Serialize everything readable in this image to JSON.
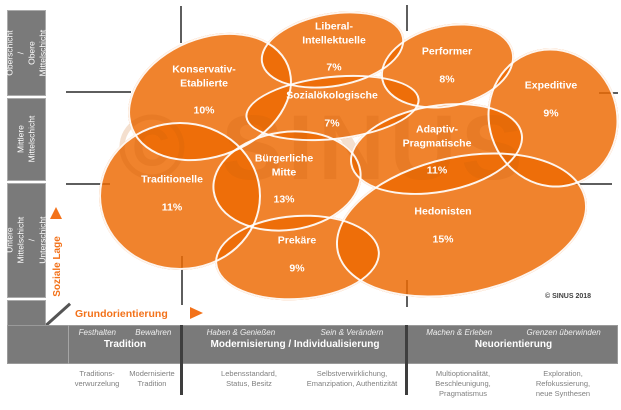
{
  "title_watermark": "© SINUS",
  "copyright": "© SINUS 2018",
  "axes": {
    "y_label": "Soziale Lage",
    "x_label": "Grundorientierung"
  },
  "strata": [
    {
      "label": "Oberschicht /\nObere\nMittelschicht"
    },
    {
      "label": "Mittlere\nMittelschicht"
    },
    {
      "label": "Untere Mittelschicht /\nUnterschicht"
    }
  ],
  "milieus": [
    {
      "name": "Konservativ-\nEtablierte",
      "pct": "10%"
    },
    {
      "name": "Liberal-\nIntellektuelle",
      "pct": "7%"
    },
    {
      "name": "Performer",
      "pct": "8%"
    },
    {
      "name": "Expeditive",
      "pct": "9%"
    },
    {
      "name": "Sozialökologische",
      "pct": "7%"
    },
    {
      "name": "Adaptiv-\nPragmatische",
      "pct": "11%"
    },
    {
      "name": "Bürgerliche\nMitte",
      "pct": "13%"
    },
    {
      "name": "Traditionelle",
      "pct": "11%"
    },
    {
      "name": "Prekäre",
      "pct": "9%"
    },
    {
      "name": "Hedonisten",
      "pct": "15%"
    }
  ],
  "orientation_bands": [
    {
      "sub_left": "Festhalten",
      "sub_right": "Bewahren",
      "title": "Tradition",
      "desc_left": "Traditions-\nverwurzelung",
      "desc_right": "Modernisierte\nTradition"
    },
    {
      "sub_left": "Haben & Genießen",
      "sub_right": "Sein & Verändern",
      "title": "Modernisierung / Individualisierung",
      "desc_left": "Lebensstandard,\nStatus, Besitz",
      "desc_right": "Selbstverwirklichung,\nEmanzipation, Authentizität"
    },
    {
      "sub_left": "Machen & Erleben",
      "sub_right": "Grenzen überwinden",
      "title": "Neuorientierung",
      "desc_left": "Multioptionalität,\nBeschleunigung,\nPragmatismus",
      "desc_right": "Exploration,\nRefokussierung,\nneue Synthesen"
    }
  ],
  "colors": {
    "milieu_orange": "#ED6A02",
    "axis_orange": "#F3721A",
    "strip_gray": "#7A7A7A",
    "grid_gray": "#5E5E5E"
  }
}
